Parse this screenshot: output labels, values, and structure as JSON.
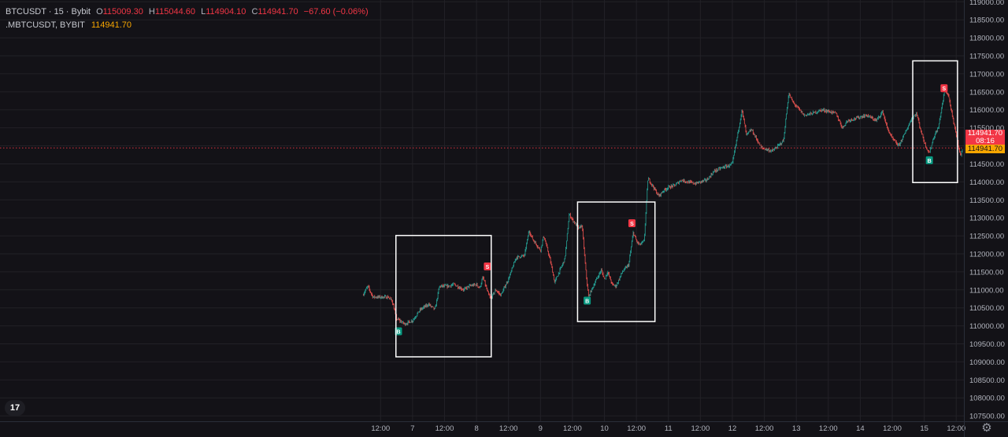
{
  "legend": {
    "symbol": "BTCUSDT · 15 · Bybit",
    "o_label": "O",
    "o": "115009.30",
    "h_label": "H",
    "h": "115044.60",
    "l_label": "L",
    "l": "114904.10",
    "c_label": "C",
    "c": "114941.70",
    "change": "−67.60 (−0.06%)"
  },
  "index_series": {
    "name": ".MBTCUSDT, BYBIT",
    "value": "114941.70"
  },
  "price_badge": {
    "price": "114941.70",
    "countdown": "08:16",
    "index_price": "114941.70"
  },
  "logo": "17",
  "colors": {
    "up": "#26a69a",
    "down": "#ef5350",
    "index": "#f7a600",
    "box": "#ffffff",
    "grid": "#222127"
  },
  "icons": {
    "settings": "gear-icon",
    "logo": "tradingview-logo-icon"
  },
  "chart_data": {
    "type": "candlestick",
    "y_axis": {
      "range": [
        107350,
        119050
      ],
      "ticks": [
        "107500.00",
        "108000.00",
        "108500.00",
        "109000.00",
        "109500.00",
        "110000.00",
        "110500.00",
        "111000.00",
        "111500.00",
        "112000.00",
        "112500.00",
        "113000.00",
        "113500.00",
        "114000.00",
        "114500.00",
        "115000.00",
        "115500.00",
        "116000.00",
        "116500.00",
        "117000.00",
        "117500.00",
        "118000.00",
        "118500.00",
        "119000.00"
      ]
    },
    "x_axis": {
      "range": [
        0.55,
        15.62
      ],
      "ticks": [
        {
          "t": 6.5,
          "label": "12:00"
        },
        {
          "t": 7,
          "label": "7"
        },
        {
          "t": 7.5,
          "label": "12:00"
        },
        {
          "t": 8,
          "label": "8"
        },
        {
          "t": 8.5,
          "label": "12:00"
        },
        {
          "t": 9,
          "label": "9"
        },
        {
          "t": 9.5,
          "label": "12:00"
        },
        {
          "t": 10,
          "label": "10"
        },
        {
          "t": 10.5,
          "label": "12:00"
        },
        {
          "t": 11,
          "label": "11"
        },
        {
          "t": 11.5,
          "label": "12:00"
        },
        {
          "t": 12,
          "label": "12"
        },
        {
          "t": 12.5,
          "label": "12:00"
        },
        {
          "t": 13,
          "label": "13"
        },
        {
          "t": 13.5,
          "label": "12:00"
        },
        {
          "t": 14,
          "label": "14"
        },
        {
          "t": 14.5,
          "label": "12:00"
        },
        {
          "t": 15,
          "label": "15"
        },
        {
          "t": 15.5,
          "label": "12:00"
        }
      ]
    },
    "price_path": [
      [
        6.22,
        110850
      ],
      [
        6.3,
        111100
      ],
      [
        6.38,
        110800
      ],
      [
        6.5,
        110800
      ],
      [
        6.62,
        110800
      ],
      [
        6.68,
        110700
      ],
      [
        6.75,
        110200
      ],
      [
        6.88,
        110050
      ],
      [
        7.0,
        110150
      ],
      [
        7.12,
        110450
      ],
      [
        7.25,
        110600
      ],
      [
        7.35,
        110450
      ],
      [
        7.42,
        111100
      ],
      [
        7.55,
        111100
      ],
      [
        7.65,
        111150
      ],
      [
        7.8,
        111000
      ],
      [
        7.88,
        111100
      ],
      [
        8.0,
        111150
      ],
      [
        8.05,
        111050
      ],
      [
        8.1,
        111350
      ],
      [
        8.18,
        110900
      ],
      [
        8.22,
        110750
      ],
      [
        8.3,
        111000
      ],
      [
        8.38,
        110850
      ],
      [
        8.5,
        111300
      ],
      [
        8.62,
        111900
      ],
      [
        8.75,
        111950
      ],
      [
        8.82,
        112650
      ],
      [
        8.88,
        112400
      ],
      [
        9.0,
        112100
      ],
      [
        9.05,
        112500
      ],
      [
        9.12,
        112050
      ],
      [
        9.18,
        111600
      ],
      [
        9.22,
        111200
      ],
      [
        9.28,
        111450
      ],
      [
        9.38,
        111850
      ],
      [
        9.45,
        113100
      ],
      [
        9.5,
        112950
      ],
      [
        9.6,
        112700
      ],
      [
        9.65,
        112800
      ],
      [
        9.7,
        111700
      ],
      [
        9.75,
        110800
      ],
      [
        9.85,
        111200
      ],
      [
        9.95,
        111550
      ],
      [
        10.0,
        111300
      ],
      [
        10.05,
        111500
      ],
      [
        10.12,
        111150
      ],
      [
        10.18,
        111100
      ],
      [
        10.28,
        111500
      ],
      [
        10.38,
        111700
      ],
      [
        10.45,
        112600
      ],
      [
        10.5,
        112350
      ],
      [
        10.55,
        112250
      ],
      [
        10.62,
        112350
      ],
      [
        10.68,
        114100
      ],
      [
        10.75,
        113900
      ],
      [
        10.85,
        113600
      ],
      [
        10.92,
        113750
      ],
      [
        11.0,
        113850
      ],
      [
        11.1,
        113900
      ],
      [
        11.2,
        114050
      ],
      [
        11.3,
        114000
      ],
      [
        11.42,
        113950
      ],
      [
        11.5,
        114000
      ],
      [
        11.6,
        114050
      ],
      [
        11.72,
        114300
      ],
      [
        11.85,
        114400
      ],
      [
        11.95,
        114450
      ],
      [
        12.0,
        114500
      ],
      [
        12.1,
        115500
      ],
      [
        12.15,
        116000
      ],
      [
        12.22,
        115300
      ],
      [
        12.3,
        115450
      ],
      [
        12.45,
        114950
      ],
      [
        12.62,
        114850
      ],
      [
        12.72,
        115000
      ],
      [
        12.8,
        115150
      ],
      [
        12.88,
        116450
      ],
      [
        12.95,
        116200
      ],
      [
        13.05,
        116000
      ],
      [
        13.12,
        115850
      ],
      [
        13.25,
        115900
      ],
      [
        13.4,
        116000
      ],
      [
        13.52,
        115950
      ],
      [
        13.62,
        115900
      ],
      [
        13.72,
        115500
      ],
      [
        13.8,
        115700
      ],
      [
        14.0,
        115800
      ],
      [
        14.1,
        115850
      ],
      [
        14.25,
        115700
      ],
      [
        14.35,
        115950
      ],
      [
        14.42,
        115500
      ],
      [
        14.5,
        115200
      ],
      [
        14.6,
        115000
      ],
      [
        14.7,
        115350
      ],
      [
        14.8,
        115750
      ],
      [
        14.88,
        115900
      ],
      [
        14.95,
        115400
      ],
      [
        15.02,
        115000
      ],
      [
        15.08,
        114800
      ],
      [
        15.15,
        115250
      ],
      [
        15.22,
        115500
      ],
      [
        15.32,
        116550
      ],
      [
        15.38,
        116400
      ],
      [
        15.44,
        115800
      ],
      [
        15.52,
        115150
      ],
      [
        15.57,
        114700
      ],
      [
        15.6,
        114941.7
      ]
    ],
    "signals": [
      {
        "type": "B",
        "t": 6.78,
        "price": 109850
      },
      {
        "type": "S",
        "t": 8.17,
        "price": 111650
      },
      {
        "type": "B",
        "t": 9.73,
        "price": 110700
      },
      {
        "type": "S",
        "t": 10.43,
        "price": 112850
      },
      {
        "type": "B",
        "t": 15.08,
        "price": 114600
      },
      {
        "type": "S",
        "t": 15.31,
        "price": 116600
      }
    ],
    "boxes": [
      {
        "t0": 6.74,
        "t1": 8.23,
        "p0": 109140,
        "p1": 112510
      },
      {
        "t0": 9.58,
        "t1": 10.79,
        "p0": 110120,
        "p1": 113440
      },
      {
        "t0": 14.82,
        "t1": 15.52,
        "p0": 113980,
        "p1": 117360
      }
    ],
    "current_price": 114941.7
  }
}
